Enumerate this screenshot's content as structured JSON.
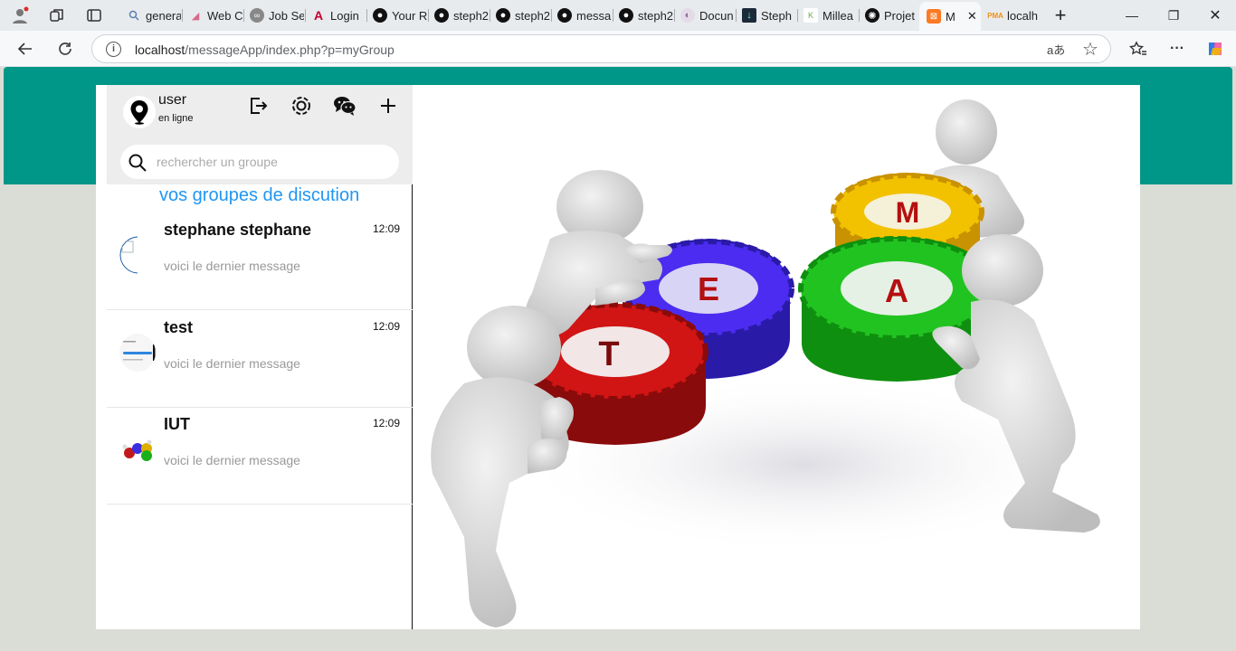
{
  "browser": {
    "tabs": [
      {
        "label": "genera",
        "icon": "search-icon"
      },
      {
        "label": "Web C",
        "icon": "web-icon"
      },
      {
        "label": "Job Se",
        "icon": "link-icon"
      },
      {
        "label": "Login",
        "icon": "angular-icon"
      },
      {
        "label": "Your R",
        "icon": "github-icon"
      },
      {
        "label": "steph2",
        "icon": "github-icon"
      },
      {
        "label": "steph2",
        "icon": "github-icon"
      },
      {
        "label": "messa",
        "icon": "github-icon"
      },
      {
        "label": "steph2",
        "icon": "github-icon"
      },
      {
        "label": "Docun",
        "icon": "doc-icon"
      },
      {
        "label": "Steph",
        "icon": "app-icon"
      },
      {
        "label": "Millea",
        "icon": "k-icon"
      },
      {
        "label": "Projet",
        "icon": "ai-icon"
      },
      {
        "label": "M",
        "icon": "xampp-icon"
      },
      {
        "label": "localh",
        "icon": "pma-icon"
      }
    ],
    "url_host": "localhost",
    "url_path": "/messageApp/index.php?p=myGroup",
    "translate_label": "aあ"
  },
  "sidebar": {
    "user_name": "user",
    "user_status": "en ligne",
    "search_placeholder": "rechercher un groupe",
    "groups_heading": "vos groupes de discution",
    "groups": [
      {
        "name": "stephane stephane",
        "time": "12:09",
        "last_message": "voici le dernier message"
      },
      {
        "name": "test",
        "time": "12:09",
        "last_message": "voici le dernier message"
      },
      {
        "name": "IUT",
        "time": "12:09",
        "last_message": "voici le dernier message"
      }
    ]
  },
  "hero": {
    "gear_letters": [
      "T",
      "E",
      "M",
      "A"
    ]
  },
  "colors": {
    "teal": "#009688",
    "heading_blue": "#2196f3"
  }
}
